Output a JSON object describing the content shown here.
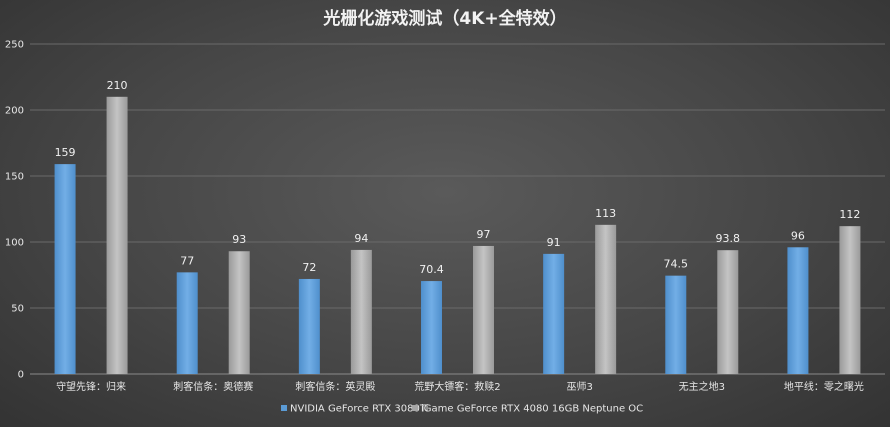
{
  "chart_data": {
    "type": "bar",
    "title": "光栅化游戏测试（4K+全特效）",
    "xlabel": "",
    "ylabel": "",
    "ylim": [
      0,
      250
    ],
    "yticks": [
      0,
      50,
      100,
      150,
      200,
      250
    ],
    "grid": true,
    "legend": "bottom",
    "categories": [
      "守望先锋：归来",
      "刺客信条：奥德赛",
      "刺客信条：英灵殿",
      "荒野大镖客：救赎2",
      "巫师3",
      "无主之地3",
      "地平线：零之曙光"
    ],
    "series": [
      {
        "name": "NVIDIA GeForce RTX 3080Ti",
        "color": "#5b9bd5",
        "values": [
          159,
          77,
          72,
          70.4,
          91,
          74.5,
          96
        ],
        "labels": [
          "159",
          "77",
          "72",
          "70.4",
          "91",
          "74.5",
          "96"
        ]
      },
      {
        "name": "iGame GeForce RTX 4080 16GB Neptune OC",
        "color": "#a5a5a5",
        "values": [
          210,
          93,
          94,
          97,
          113,
          93.8,
          112
        ],
        "labels": [
          "210",
          "93",
          "94",
          "97",
          "113",
          "93.8",
          "112"
        ]
      }
    ]
  }
}
